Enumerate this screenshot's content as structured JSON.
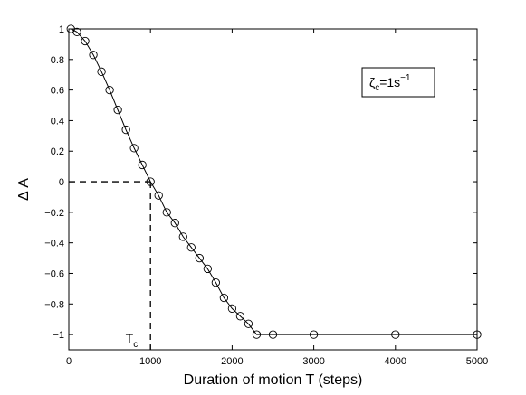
{
  "chart_data": {
    "type": "line",
    "xlabel": "Duration of motion T (steps)",
    "ylabel": "Δ A",
    "xlim": [
      0,
      5000
    ],
    "ylim": [
      -1.1,
      1
    ],
    "x_ticks": [
      0,
      1000,
      2000,
      3000,
      4000,
      5000
    ],
    "x_tick_labels": [
      "0",
      "1000",
      "2000",
      "3000",
      "4000",
      "5000"
    ],
    "y_ticks": [
      1,
      0.8,
      0.6,
      0.4,
      0.2,
      0,
      -0.2,
      -0.4,
      -0.6,
      -0.8,
      -1
    ],
    "y_tick_labels": [
      "1",
      "0.8",
      "0.6",
      "0.4",
      "0.2",
      "0",
      "−0.2",
      "−0.4",
      "−0.6",
      "−0.8",
      "−1"
    ],
    "grid": false,
    "legend_box": {
      "zeta": "ζ",
      "sub": "c",
      "value": "=1s",
      "exponent": "−1"
    },
    "annotation": {
      "text": "T",
      "sub": "c",
      "x": 1000,
      "y": 0
    },
    "series": [
      {
        "marker": "circle-open",
        "x": [
          25,
          100,
          200,
          300,
          400,
          500,
          600,
          700,
          800,
          900,
          1000,
          1100,
          1200,
          1300,
          1400,
          1500,
          1600,
          1700,
          1800,
          1900,
          2000,
          2100,
          2200,
          2300,
          2500,
          3000,
          4000,
          5000
        ],
        "y": [
          1.0,
          0.98,
          0.92,
          0.83,
          0.72,
          0.6,
          0.47,
          0.34,
          0.22,
          0.11,
          0.0,
          -0.09,
          -0.2,
          -0.27,
          -0.36,
          -0.43,
          -0.5,
          -0.57,
          -0.66,
          -0.76,
          -0.83,
          -0.88,
          -0.93,
          -1.0,
          -1.0,
          -1.0,
          -1.0,
          -1.0
        ]
      }
    ]
  }
}
